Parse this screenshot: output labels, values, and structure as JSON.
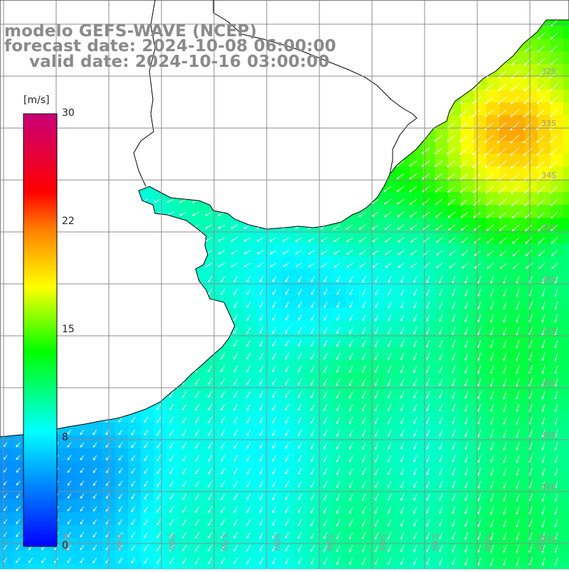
{
  "title": {
    "model": "modelo GEFS-WAVE (NCEP)",
    "forecast_date": "forecast date: 2024-10-08 06:00:00",
    "valid_date": "valid date: 2024-10-16 03:00:00"
  },
  "colorbar": {
    "unit": "[m/s]",
    "min": 0,
    "max": 30,
    "ticks": [
      "30",
      "22",
      "15",
      "8",
      "0"
    ],
    "tick_values": [
      30,
      22,
      15,
      8,
      0
    ],
    "colors": [
      "#0000ff",
      "#00ffff",
      "#00ff00",
      "#ffff00",
      "#ff7f00",
      "#ff0000",
      "#c80078"
    ]
  },
  "map": {
    "lat_labels": [
      "32S",
      "33S",
      "34S",
      "35S",
      "36S",
      "37S",
      "38S",
      "39S",
      "40S",
      "41S"
    ],
    "lon_labels": [
      "60W",
      "59W",
      "58W",
      "57W",
      "56W",
      "55W",
      "54W",
      "53W",
      "52W",
      "51W"
    ],
    "land_color": "#ffffff",
    "coast_color": "#000000",
    "grid_color": "#8c8c8c"
  }
}
